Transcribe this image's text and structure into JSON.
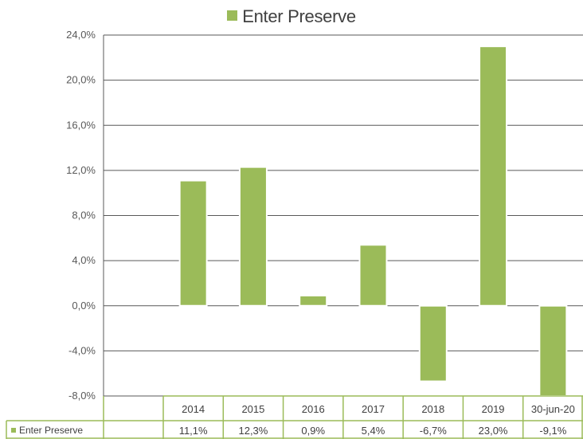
{
  "chart_data": {
    "type": "bar",
    "legend": {
      "label": "Enter Preserve",
      "placement": "top-center"
    },
    "categories": [
      "2014",
      "2015",
      "2016",
      "2017",
      "2018",
      "2019",
      "30-jun-20"
    ],
    "series": [
      {
        "name": "Enter Preserve",
        "values": [
          11.1,
          12.3,
          0.9,
          5.4,
          -6.7,
          23.0,
          -9.1
        ],
        "labels": [
          "11,1%",
          "12,3%",
          "0,9%",
          "5,4%",
          "-6,7%",
          "23,0%",
          "-9,1%"
        ]
      }
    ],
    "ylim": [
      -8,
      24
    ],
    "yticks": [
      24,
      20,
      16,
      12,
      8,
      4,
      0,
      -4,
      -8
    ],
    "ytick_labels": [
      "24,0%",
      "20,0%",
      "16,0%",
      "12,0%",
      "8,0%",
      "4,0%",
      "0,0%",
      "-4,0%",
      "-8,0%"
    ],
    "grid": true,
    "data_table": true,
    "colors": {
      "bar": "#9bbb59",
      "grid": "#595959",
      "table_border": "#9bbb59"
    }
  }
}
